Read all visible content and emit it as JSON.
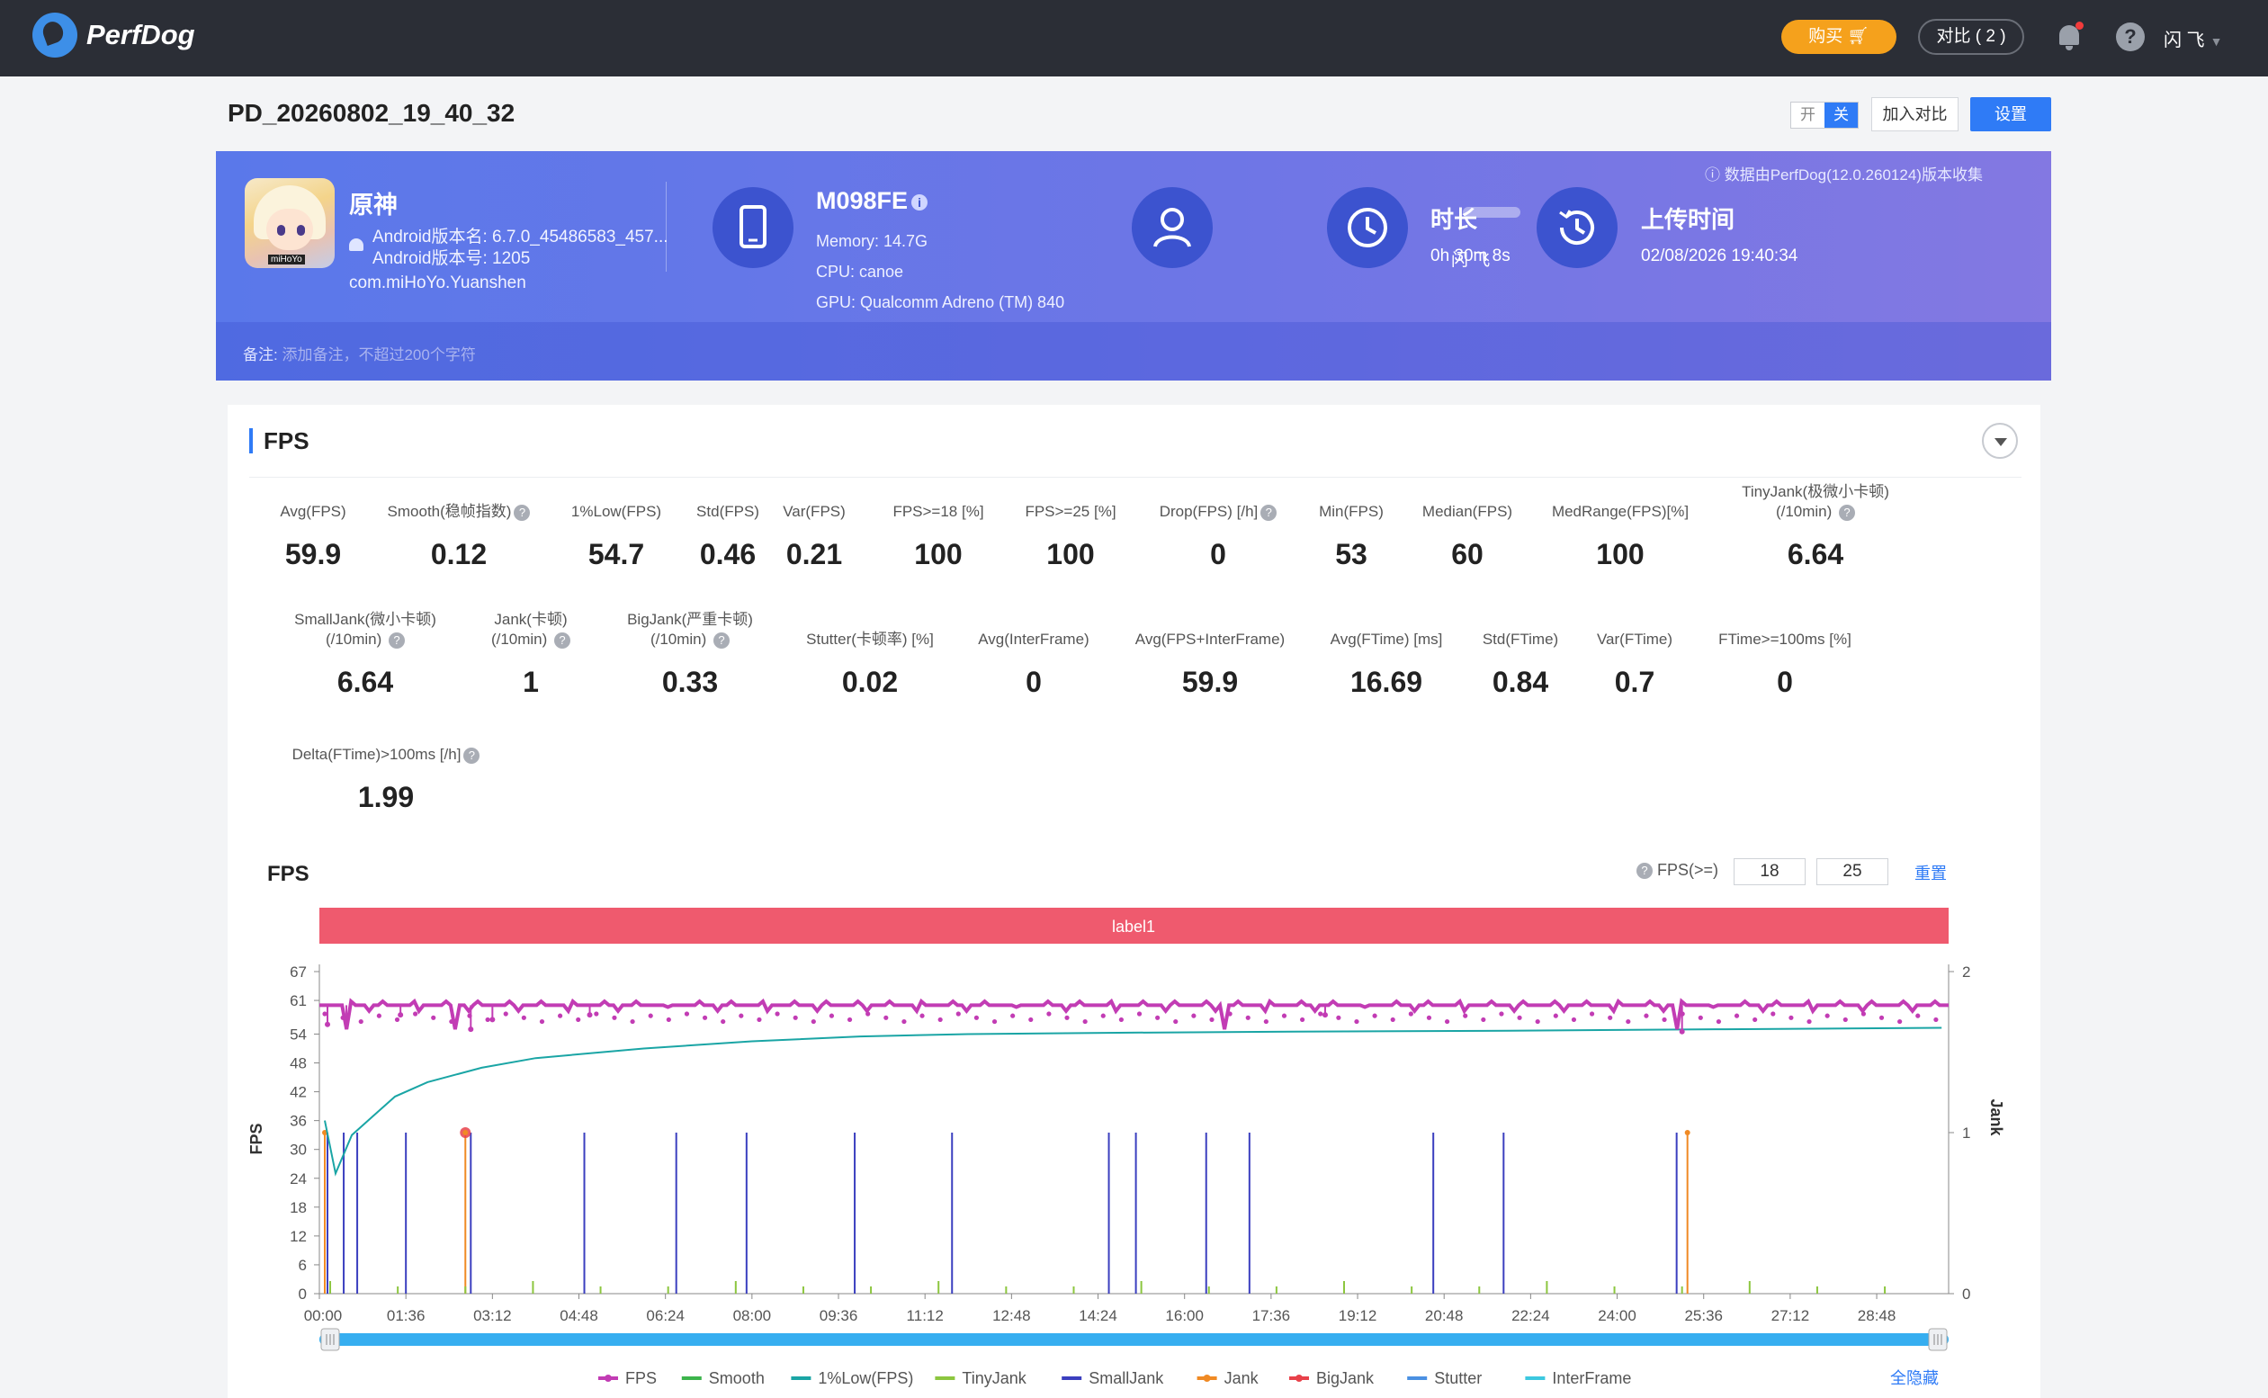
{
  "topbar": {
    "logo_text": "PerfDog",
    "buy_label": "购买",
    "compare_label": "对比 ( 2 )",
    "help_label": "?",
    "user_label": "闪 飞"
  },
  "page": {
    "title": "PD_20260802_19_40_32",
    "toggle_on": "开",
    "toggle_off": "关",
    "add_compare_label": "加入对比",
    "settings_label": "设置"
  },
  "info": {
    "app_name": "原神",
    "app_icon_tag": "miHoYo",
    "android_version_name": "Android版本名: 6.7.0_45486583_457...",
    "android_version_code": "Android版本号: 1205",
    "package": "com.miHoYo.Yuanshen",
    "device_name": "M098FE",
    "memory": "Memory: 14.7G",
    "cpu": "CPU: canoe",
    "gpu": "GPU: Qualcomm Adreno (TM) 840",
    "user_name": "闪 飞",
    "duration_label": "时长",
    "duration_value": "0h 30m 8s",
    "upload_label": "上传时间",
    "upload_value": "02/08/2026 19:40:34",
    "collected_note": "ⓘ 数据由PerfDog(12.0.260124)版本收集",
    "note_label": "备注:",
    "note_placeholder": "添加备注，不超过200个字符"
  },
  "panel": {
    "title": "FPS"
  },
  "metrics_row1": [
    {
      "label": "Avg(FPS)",
      "value": "59.9",
      "help": false
    },
    {
      "label": "Smooth(稳帧指数)",
      "value": "0.12",
      "help": true
    },
    {
      "label": "1%Low(FPS)",
      "value": "54.7",
      "help": false
    },
    {
      "label": "Std(FPS)",
      "value": "0.46",
      "help": false
    },
    {
      "label": "Var(FPS)",
      "value": "0.21",
      "help": false
    },
    {
      "label": "FPS>=18 [%]",
      "value": "100",
      "help": false
    },
    {
      "label": "FPS>=25 [%]",
      "value": "100",
      "help": false
    },
    {
      "label": "Drop(FPS) [/h]",
      "value": "0",
      "help": true
    },
    {
      "label": "Min(FPS)",
      "value": "53",
      "help": false
    },
    {
      "label": "Median(FPS)",
      "value": "60",
      "help": false
    },
    {
      "label": "MedRange(FPS)[%]",
      "value": "100",
      "help": false
    },
    {
      "label": "TinyJank(极微小卡顿)",
      "label2": "(/10min)",
      "value": "6.64",
      "help": true
    }
  ],
  "metrics_row2": [
    {
      "label": "SmallJank(微小卡顿)",
      "label2": "(/10min)",
      "value": "6.64",
      "help": true
    },
    {
      "label": "Jank(卡顿)",
      "label2": "(/10min)",
      "value": "1",
      "help": true
    },
    {
      "label": "BigJank(严重卡顿)",
      "label2": "(/10min)",
      "value": "0.33",
      "help": true
    },
    {
      "label": "Stutter(卡顿率) [%]",
      "value": "0.02",
      "help": false
    },
    {
      "label": "Avg(InterFrame)",
      "value": "0",
      "help": false
    },
    {
      "label": "Avg(FPS+InterFrame)",
      "value": "59.9",
      "help": false
    },
    {
      "label": "Avg(FTime) [ms]",
      "value": "16.69",
      "help": false
    },
    {
      "label": "Std(FTime)",
      "value": "0.84",
      "help": false
    },
    {
      "label": "Var(FTime)",
      "value": "0.7",
      "help": false
    },
    {
      "label": "FTime>=100ms [%]",
      "value": "0",
      "help": false
    }
  ],
  "metrics_row3": [
    {
      "label": "Delta(FTime)>100ms [/h]",
      "value": "1.99",
      "help": true
    }
  ],
  "chart_controls": {
    "title": "FPS",
    "fps_ge_label": "FPS(>=)",
    "threshold_1": "18",
    "threshold_2": "25",
    "reset_label": "重置",
    "hide_all_label": "全隐藏"
  },
  "chart_data": {
    "type": "line",
    "band_label": "label1",
    "ylabel": "FPS",
    "y2label": "Jank",
    "ylim": [
      0,
      67
    ],
    "y2lim": [
      0,
      2
    ],
    "y_ticks": [
      0,
      6,
      12,
      18,
      24,
      30,
      36,
      42,
      48,
      54,
      61,
      67
    ],
    "y2_ticks": [
      0,
      1,
      2
    ],
    "x_ticks": [
      "00:00",
      "01:36",
      "03:12",
      "04:48",
      "06:24",
      "08:00",
      "09:36",
      "11:12",
      "12:48",
      "14:24",
      "16:00",
      "17:36",
      "19:12",
      "20:48",
      "22:24",
      "24:00",
      "25:36",
      "27:12",
      "28:48"
    ],
    "x_range_min": [
      0,
      30.13
    ],
    "legend": [
      {
        "name": "FPS",
        "color": "#c23cb4"
      },
      {
        "name": "Smooth",
        "color": "#3cb44b"
      },
      {
        "name": "1%Low(FPS)",
        "color": "#1aa5a5"
      },
      {
        "name": "TinyJank",
        "color": "#8cc63f"
      },
      {
        "name": "SmallJank",
        "color": "#3b3fbf"
      },
      {
        "name": "Jank",
        "color": "#f08a24"
      },
      {
        "name": "BigJank",
        "color": "#e8414a"
      },
      {
        "name": "Stutter",
        "color": "#4a90e2"
      },
      {
        "name": "InterFrame",
        "color": "#3cc8e0"
      }
    ],
    "series": [
      {
        "name": "FPS",
        "values": "~60 steady with dips to ~53-57",
        "baseline": 60
      },
      {
        "name": "1%Low(FPS)",
        "x_min": [
          0.1,
          0.3,
          0.6,
          1.0,
          1.4,
          2.0,
          3.0,
          4.0,
          6.0,
          8.0,
          10.0,
          12.0,
          15.0,
          18.0,
          22.0,
          26.0,
          30.0
        ],
        "y": [
          36,
          25,
          33,
          37,
          41,
          44,
          47,
          49,
          51,
          52.5,
          53.5,
          54,
          54.3,
          54.5,
          54.7,
          55,
          55.3
        ]
      },
      {
        "name": "SmallJank",
        "x_min": [
          0.15,
          0.45,
          0.7,
          1.6,
          2.8,
          4.9,
          6.6,
          7.9,
          9.9,
          11.7,
          14.6,
          15.1,
          16.4,
          17.2,
          20.6,
          21.9,
          25.1
        ],
        "y": [
          1,
          1,
          1,
          1,
          1,
          1,
          1,
          1,
          1,
          1,
          1,
          1,
          1,
          1,
          1,
          1,
          1
        ]
      },
      {
        "name": "Jank",
        "x_min": [
          0.1,
          2.7,
          25.3
        ],
        "y": [
          1,
          1,
          1
        ]
      },
      {
        "name": "BigJank",
        "x_min": [
          2.7
        ],
        "y": [
          1
        ]
      }
    ]
  }
}
